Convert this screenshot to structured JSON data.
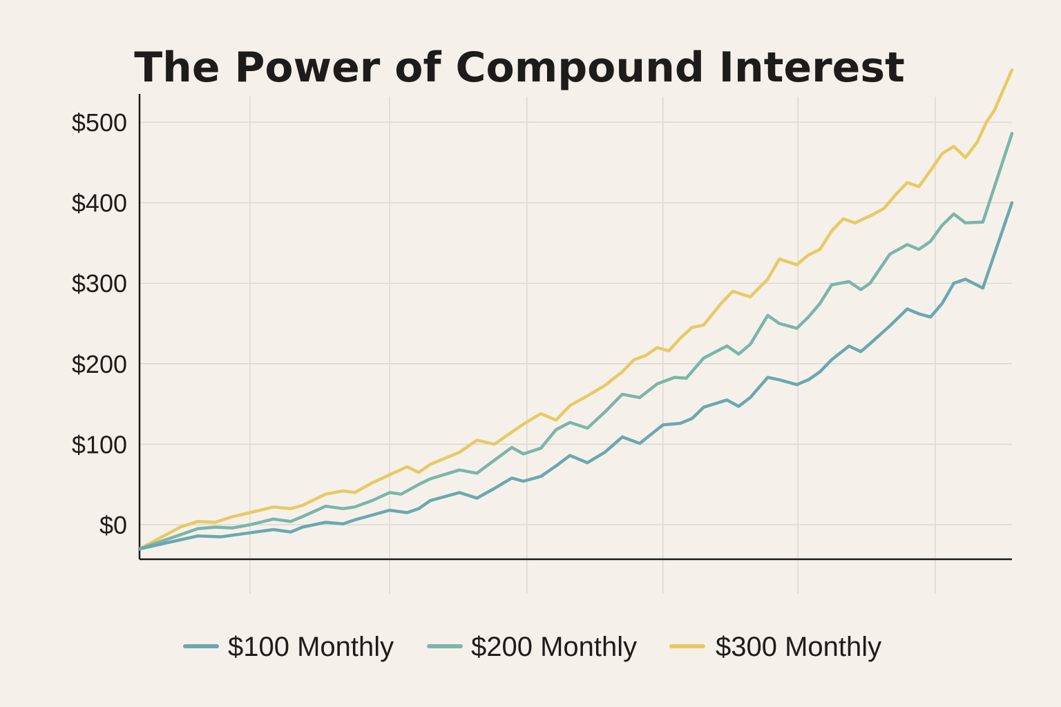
{
  "colors": {
    "background": "#f5f1ea",
    "text": "#1e1c1a",
    "grid": "#dcd8d2",
    "axis": "#1a1a1a"
  },
  "chart_data": {
    "type": "line",
    "title": "The Power of Compound Interest",
    "xlabel": "",
    "ylabel": "",
    "ylim": [
      -30,
      545
    ],
    "xlim": [
      0,
      75
    ],
    "grid": true,
    "legend_position": "bottom-center",
    "y_ticks": [
      {
        "value": 0,
        "label": "$0"
      },
      {
        "value": 100,
        "label": "$100"
      },
      {
        "value": 200,
        "label": "$200"
      },
      {
        "value": 300,
        "label": "$300"
      },
      {
        "value": 400,
        "label": "$400"
      },
      {
        "value": 500,
        "label": "$500"
      }
    ],
    "x_gridlines": [
      9.5,
      21.5,
      33.3,
      45,
      56.6,
      68.4
    ],
    "series": [
      {
        "name": "$100 Monthly",
        "color": "#6aa8b0",
        "x": [
          0,
          5,
          7,
          8,
          9.5,
          11.5,
          13,
          14,
          16,
          17.5,
          18.5,
          20,
          21.5,
          23,
          24,
          25,
          27.5,
          29,
          30.5,
          32,
          33,
          34.5,
          35.8,
          37,
          38.5,
          40,
          41.5,
          43,
          45,
          46.5,
          47.5,
          48.5,
          50.5,
          51.5,
          52.5,
          54,
          55,
          56.5,
          57.5,
          58.5,
          59.5,
          61,
          62,
          62.8,
          64.5,
          66,
          67,
          68,
          69,
          70,
          71,
          72.5,
          75
        ],
        "y": [
          -30,
          -14,
          -15,
          -13,
          -10,
          -6,
          -9,
          -3,
          3,
          1,
          6,
          12,
          18,
          15,
          20,
          30,
          40,
          33,
          45,
          58,
          54,
          60,
          73,
          86,
          77,
          90,
          109,
          101,
          124,
          126,
          132,
          146,
          155,
          147,
          158,
          183,
          180,
          174,
          180,
          190,
          205,
          222,
          215,
          225,
          247,
          268,
          262,
          258,
          275,
          300,
          305,
          294,
          400
        ]
      },
      {
        "name": "$200 Monthly",
        "color": "#7bb5aa",
        "x": [
          0,
          5,
          6.5,
          8,
          9.5,
          11.5,
          13,
          14,
          16,
          17.5,
          18.5,
          20,
          21.5,
          22.5,
          24,
          25,
          27.5,
          29,
          30.5,
          32,
          33,
          34.5,
          35.8,
          37,
          38.5,
          40,
          41.5,
          43,
          44.5,
          46,
          47,
          48.5,
          50.5,
          51.5,
          52.5,
          54,
          55,
          56.5,
          57.5,
          58.5,
          59.5,
          61,
          62,
          62.8,
          64.5,
          66,
          67,
          68,
          69,
          70,
          71,
          72.5,
          75
        ],
        "y": [
          -30,
          -5,
          -3,
          -4,
          0,
          7,
          4,
          10,
          23,
          20,
          22,
          30,
          40,
          38,
          50,
          57,
          68,
          64,
          80,
          96,
          88,
          95,
          118,
          127,
          120,
          140,
          162,
          158,
          175,
          183,
          182,
          207,
          222,
          212,
          224,
          260,
          250,
          244,
          258,
          275,
          298,
          302,
          292,
          300,
          336,
          348,
          342,
          352,
          372,
          386,
          375,
          376,
          486
        ]
      },
      {
        "name": "$300 Monthly",
        "color": "#e8c966",
        "x": [
          0,
          3.5,
          5,
          6.5,
          8,
          9.5,
          11.5,
          13,
          14,
          16,
          17.5,
          18.5,
          20,
          21.5,
          23,
          24,
          25,
          27.5,
          29,
          30.5,
          32,
          33,
          34.5,
          35.8,
          37,
          38.5,
          40,
          41.5,
          42.5,
          43.5,
          44.5,
          45.5,
          46.5,
          47.5,
          48.5,
          50,
          51,
          52.5,
          54,
          55,
          56.5,
          57.5,
          58.5,
          59.5,
          60.5,
          61.5,
          63,
          64,
          65,
          66,
          67,
          68,
          69,
          70,
          71,
          72,
          72.8,
          73.5,
          75
        ],
        "y": [
          -30,
          -3,
          4,
          3,
          10,
          15,
          22,
          20,
          24,
          38,
          42,
          40,
          52,
          62,
          72,
          65,
          75,
          90,
          105,
          100,
          115,
          125,
          138,
          130,
          148,
          160,
          173,
          190,
          205,
          210,
          220,
          216,
          232,
          245,
          248,
          275,
          290,
          283,
          305,
          330,
          323,
          335,
          342,
          365,
          380,
          375,
          385,
          393,
          410,
          425,
          420,
          440,
          461,
          470,
          456,
          475,
          500,
          515,
          565
        ]
      }
    ]
  }
}
